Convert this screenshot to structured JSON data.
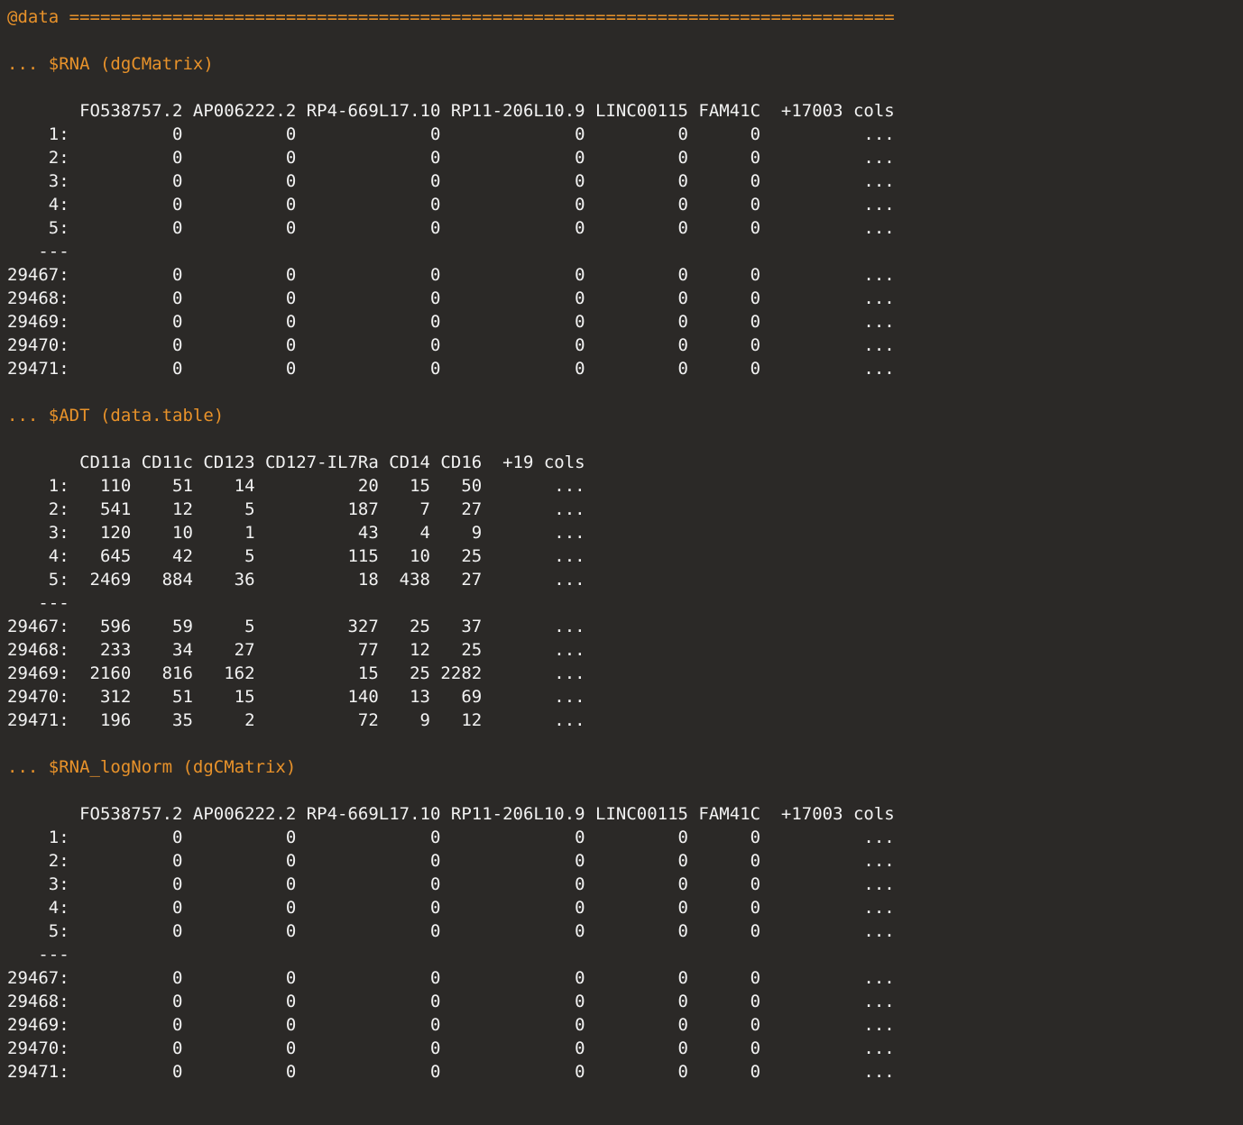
{
  "header": "@data ================================================================================",
  "sections": [
    {
      "title": "... $RNA (dgCMatrix)",
      "header_line": "       FO538757.2 AP006222.2 RP4-669L17.10 RP11-206L10.9 LINC00115 FAM41C  +17003 cols",
      "rows": [
        "    1:          0          0             0             0         0      0          ...",
        "    2:          0          0             0             0         0      0          ...",
        "    3:          0          0             0             0         0      0          ...",
        "    4:          0          0             0             0         0      0          ...",
        "    5:          0          0             0             0         0      0          ...",
        "   ---",
        "29467:          0          0             0             0         0      0          ...",
        "29468:          0          0             0             0         0      0          ...",
        "29469:          0          0             0             0         0      0          ...",
        "29470:          0          0             0             0         0      0          ...",
        "29471:          0          0             0             0         0      0          ..."
      ]
    },
    {
      "title": "... $ADT (data.table)",
      "header_line": "       CD11a CD11c CD123 CD127-IL7Ra CD14 CD16  +19 cols",
      "rows": [
        "    1:   110    51    14          20   15   50       ...",
        "    2:   541    12     5         187    7   27       ...",
        "    3:   120    10     1          43    4    9       ...",
        "    4:   645    42     5         115   10   25       ...",
        "    5:  2469   884    36          18  438   27       ...",
        "   ---",
        "29467:   596    59     5         327   25   37       ...",
        "29468:   233    34    27          77   12   25       ...",
        "29469:  2160   816   162          15   25 2282       ...",
        "29470:   312    51    15         140   13   69       ...",
        "29471:   196    35     2          72    9   12       ..."
      ]
    },
    {
      "title": "... $RNA_logNorm (dgCMatrix)",
      "header_line": "       FO538757.2 AP006222.2 RP4-669L17.10 RP11-206L10.9 LINC00115 FAM41C  +17003 cols",
      "rows": [
        "    1:          0          0             0             0         0      0          ...",
        "    2:          0          0             0             0         0      0          ...",
        "    3:          0          0             0             0         0      0          ...",
        "    4:          0          0             0             0         0      0          ...",
        "    5:          0          0             0             0         0      0          ...",
        "   ---",
        "29467:          0          0             0             0         0      0          ...",
        "29468:          0          0             0             0         0      0          ...",
        "29469:          0          0             0             0         0      0          ...",
        "29470:          0          0             0             0         0      0          ...",
        "29471:          0          0             0             0         0      0          ..."
      ]
    }
  ],
  "colors": {
    "background": "#2b2927",
    "text": "#f2f2f2",
    "accent": "#e8922a"
  }
}
